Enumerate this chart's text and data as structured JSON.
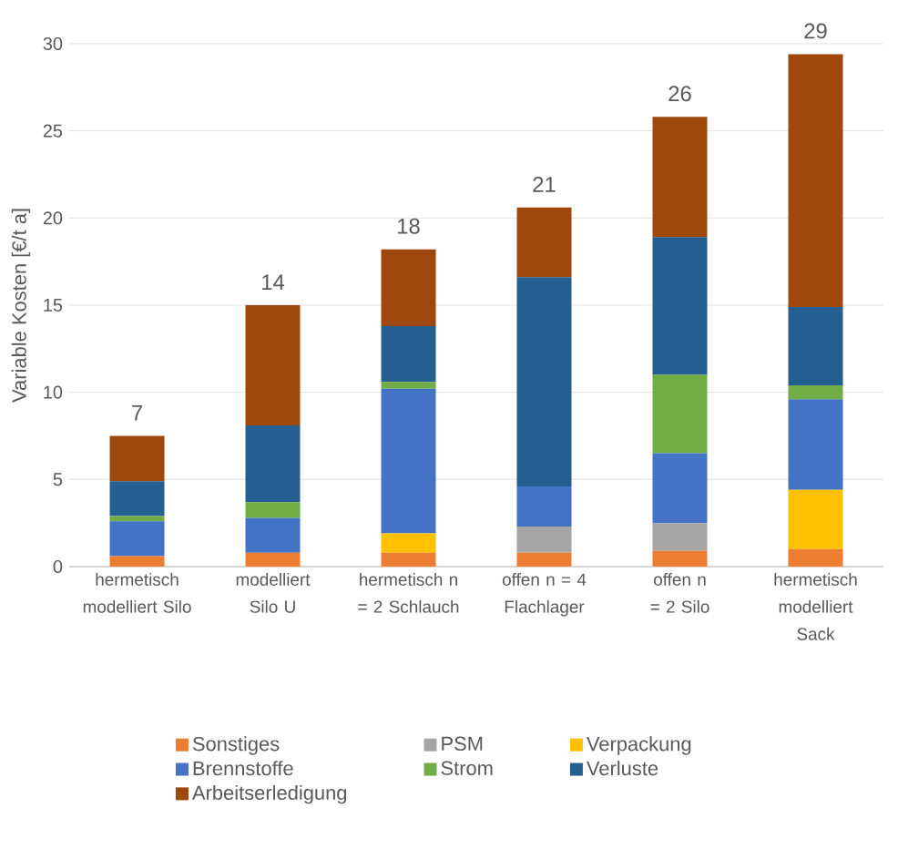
{
  "chart_data": {
    "type": "bar",
    "stacked": true,
    "ylabel": "Variable Kosten [€/t a]",
    "categories": [
      "hermetisch modelliert Silo",
      "modelliert Silo U",
      "hermetisch n = 2 Schlauch",
      "offen n = 4 Flachlager",
      "offen n = 2 Silo",
      "hermetisch modelliert Sack"
    ],
    "series": [
      {
        "name": "Sonstiges",
        "color": "#ed7d31",
        "values": [
          0.6,
          0.8,
          0.8,
          0.8,
          0.9,
          1.0
        ]
      },
      {
        "name": "PSM",
        "color": "#a5a5a5",
        "values": [
          0,
          0,
          0,
          1.5,
          1.6,
          0
        ]
      },
      {
        "name": "Verpackung",
        "color": "#ffc000",
        "values": [
          0,
          0,
          1.1,
          0,
          0,
          3.4
        ]
      },
      {
        "name": "Brennstoffe",
        "color": "#4472c4",
        "values": [
          2.0,
          2.0,
          8.3,
          2.3,
          4.0,
          5.2
        ]
      },
      {
        "name": "Strom",
        "color": "#70ad47",
        "values": [
          0.3,
          0.9,
          0.4,
          0,
          4.5,
          0.8
        ]
      },
      {
        "name": "Verluste",
        "color": "#255e91",
        "values": [
          2.0,
          4.4,
          3.2,
          12.0,
          7.9,
          4.5
        ]
      },
      {
        "name": "Arbeitserledigung",
        "color": "#9e480e",
        "values": [
          2.6,
          6.9,
          4.4,
          4.0,
          6.9,
          14.5
        ]
      }
    ],
    "totals": [
      "7",
      "14",
      "18",
      "21",
      "26",
      "29"
    ],
    "ylim": [
      0,
      30
    ],
    "yticks": [
      0,
      5,
      10,
      15,
      20,
      25,
      30
    ],
    "grid": "y",
    "legend": "bottom"
  }
}
